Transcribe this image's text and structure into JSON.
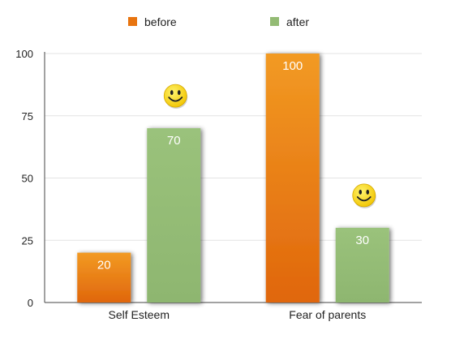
{
  "chart_data": {
    "type": "bar",
    "categories": [
      "Self Esteem",
      "Fear of parents"
    ],
    "series": [
      {
        "name": "before",
        "values": [
          20,
          100
        ],
        "color": "#e8740f"
      },
      {
        "name": "after",
        "values": [
          70,
          30
        ],
        "color": "#93bb74"
      }
    ],
    "ylim": [
      0,
      100
    ],
    "yticks": [
      0,
      25,
      50,
      75,
      100
    ],
    "data_labels": true,
    "legend_position": "top",
    "grid": true,
    "annotations": [
      {
        "type": "smiley-icon",
        "category": "Self Esteem",
        "series": "after"
      },
      {
        "type": "smiley-icon",
        "category": "Fear of parents",
        "series": "after"
      }
    ]
  }
}
